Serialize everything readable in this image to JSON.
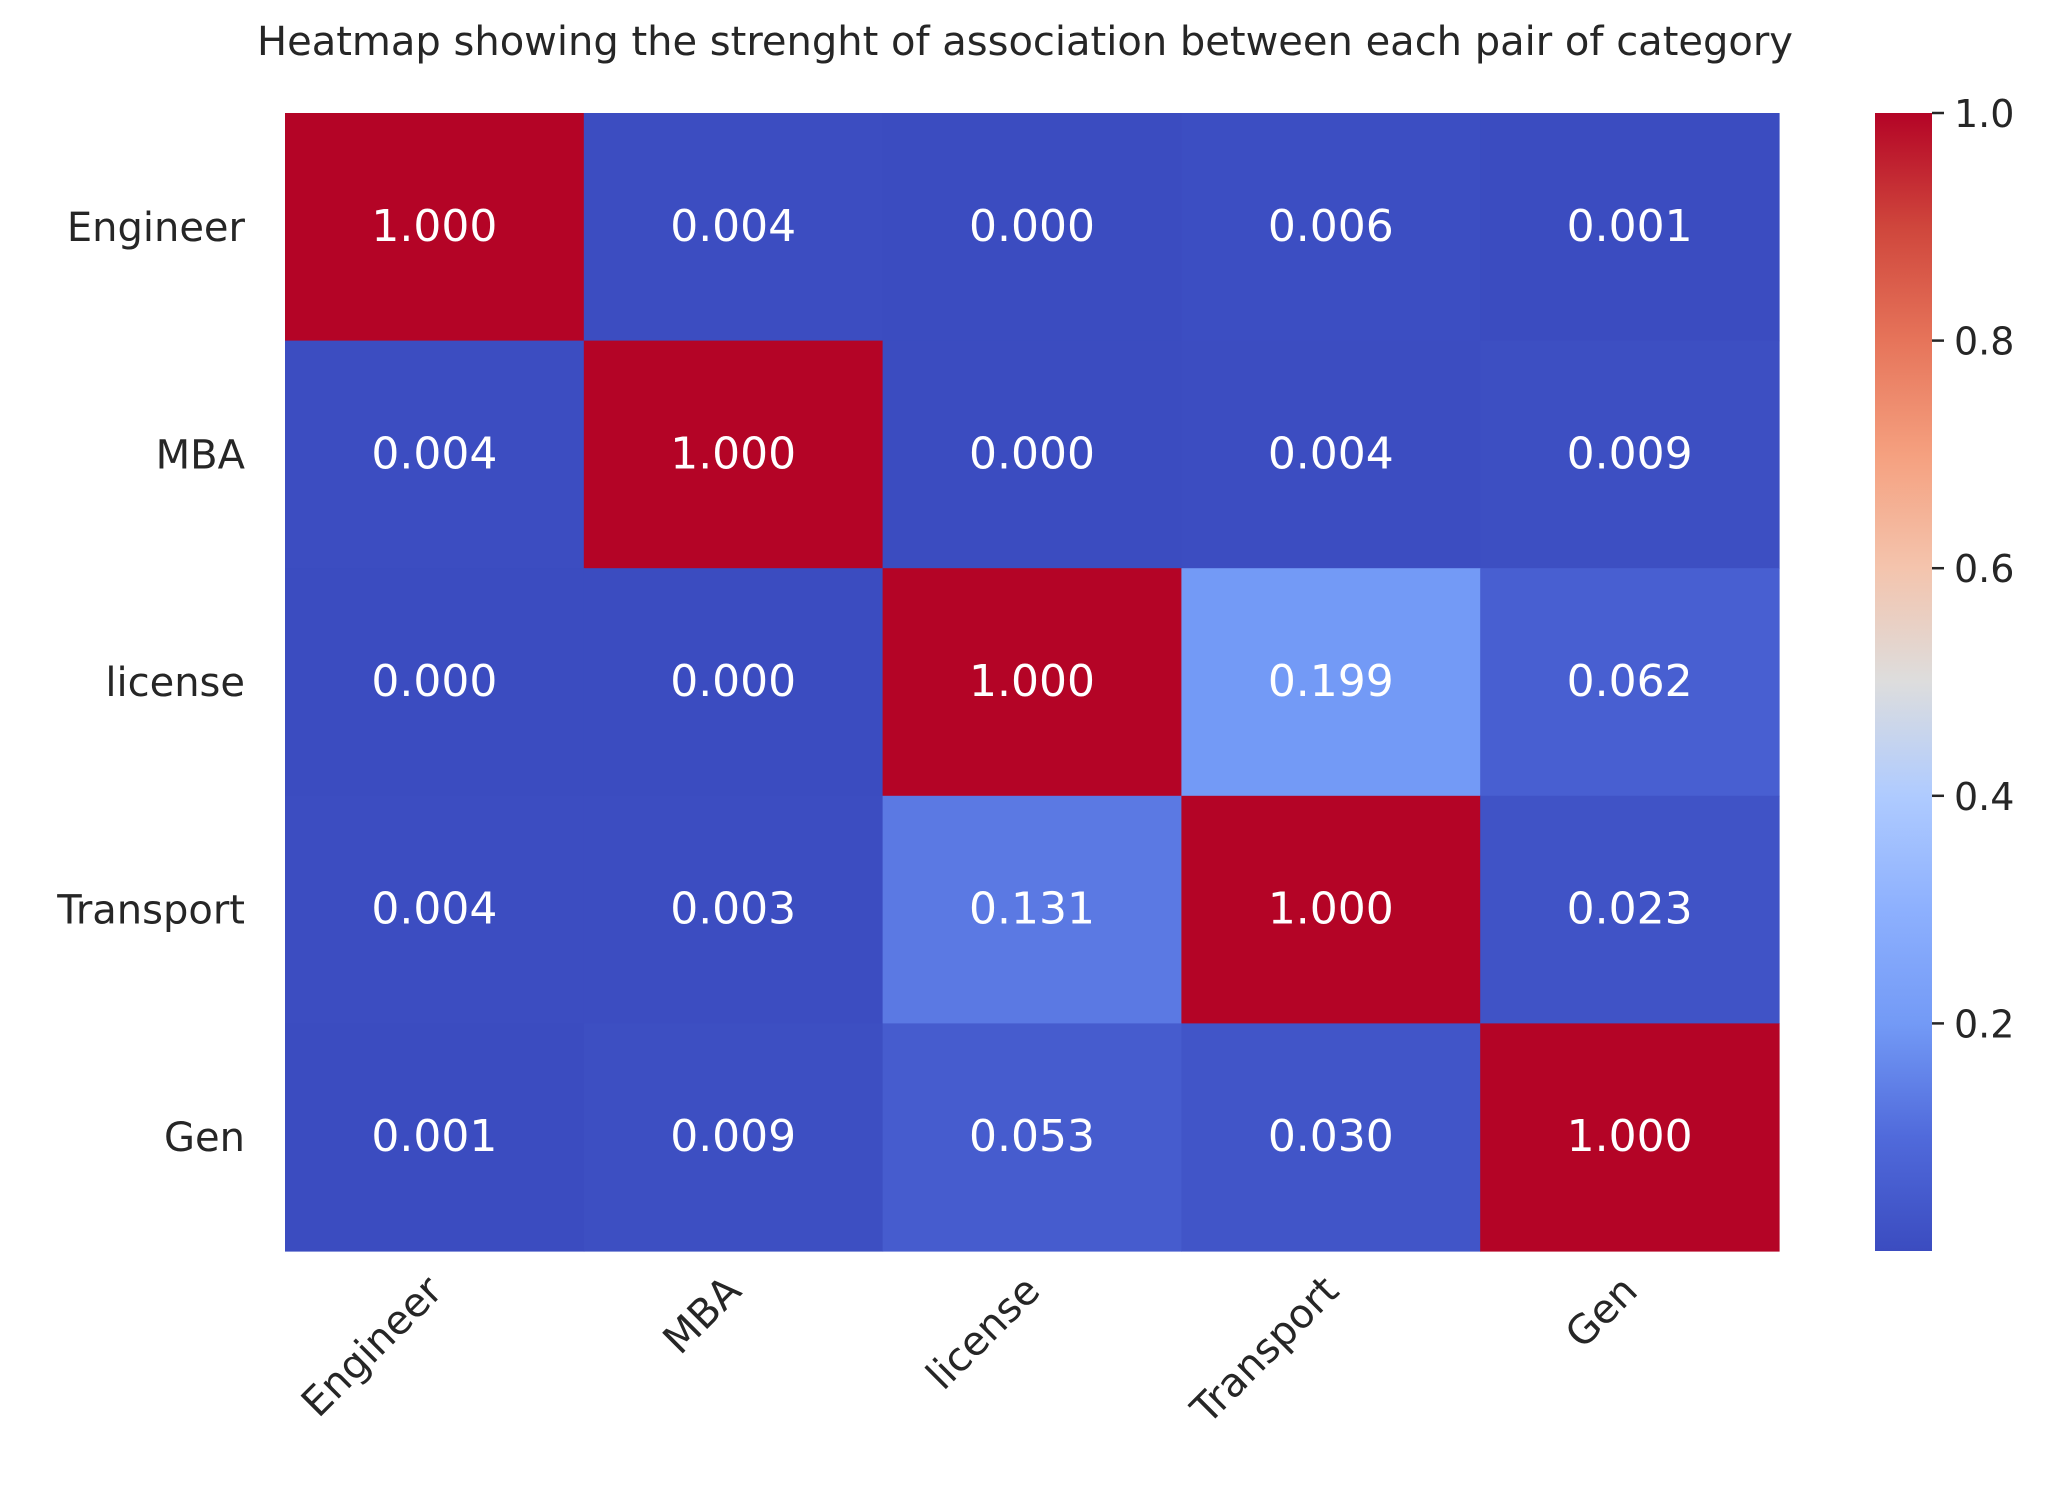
{
  "chart_data": {
    "type": "heatmap",
    "title": "Heatmap showing the strenght of association between each pair of category",
    "xlabel": "",
    "ylabel": "",
    "x_categories": [
      "Engineer",
      "MBA",
      "license",
      "Transport",
      "Gen"
    ],
    "y_categories": [
      "Engineer",
      "MBA",
      "license",
      "Transport",
      "Gen"
    ],
    "values": [
      [
        1.0,
        0.004,
        0.0,
        0.006,
        0.001
      ],
      [
        0.004,
        1.0,
        0.0,
        0.004,
        0.009
      ],
      [
        0.0,
        0.0,
        1.0,
        0.199,
        0.062
      ],
      [
        0.004,
        0.003,
        0.131,
        1.0,
        0.023
      ],
      [
        0.001,
        0.009,
        0.053,
        0.03,
        1.0
      ]
    ],
    "value_format": "0.000",
    "colormap": "coolwarm",
    "color_range": [
      0.0,
      1.0
    ],
    "colorbar": {
      "ticks": [
        0.2,
        0.4,
        0.6,
        0.8,
        1.0
      ],
      "tick_labels": [
        "0.2",
        "0.4",
        "0.6",
        "0.8",
        "1.0"
      ]
    },
    "x_tick_rotation": 45,
    "grid": false,
    "legend": "colorbar-right"
  }
}
